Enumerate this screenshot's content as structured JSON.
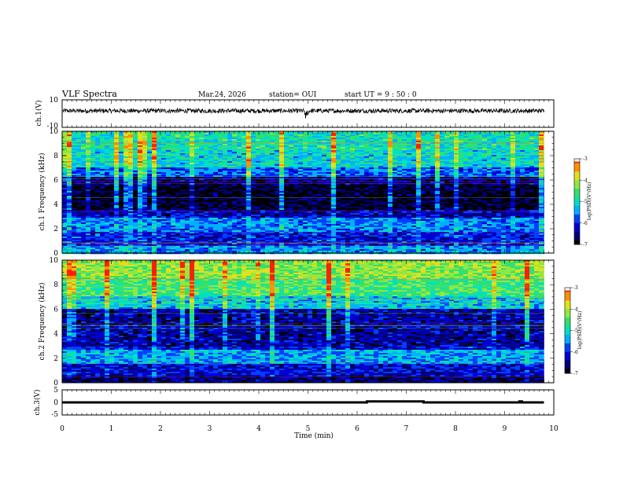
{
  "header": {
    "title": "VLF Spectra",
    "date": "Mar.24, 2026",
    "station": "station= OUI",
    "start_ut": "start  UT =   9 : 50 : 0"
  },
  "chart_data": [
    {
      "type": "line",
      "panel": "ch1-waveform",
      "ylabel": "ch.1(V)",
      "ylim": [
        -10,
        10
      ],
      "yticks": [
        "10",
        "-10"
      ],
      "xlim": [
        0,
        10
      ],
      "x": [
        0,
        1,
        2,
        3,
        4,
        5,
        6,
        7,
        8,
        9,
        9.8
      ],
      "values": [
        2,
        2,
        2,
        2,
        2,
        2,
        2,
        2,
        2,
        2,
        2
      ]
    },
    {
      "type": "heatmap",
      "panel": "ch1-spectrogram",
      "ylabel": "ch.1 Frequency (kHz)",
      "ylim": [
        0,
        10
      ],
      "yticks": [
        "0",
        "2",
        "4",
        "6",
        "8",
        "10"
      ],
      "xlim": [
        0,
        10
      ],
      "data_extent_min": 9.8,
      "band_levels": [
        {
          "f": [
            8.5,
            10
          ],
          "log_psd": -4.9
        },
        {
          "f": [
            7,
            8.5
          ],
          "log_psd": -5.1
        },
        {
          "f": [
            6.2,
            7
          ],
          "log_psd": -5.7
        },
        {
          "f": [
            5.6,
            6.2
          ],
          "log_psd": -6.5
        },
        {
          "f": [
            3.6,
            5.6
          ],
          "log_psd": -6.9
        },
        {
          "f": [
            2.9,
            3.6
          ],
          "log_psd": -6.3
        },
        {
          "f": [
            1.7,
            2.9
          ],
          "log_psd": -5.6
        },
        {
          "f": [
            0.6,
            1.7
          ],
          "log_psd": -6.1
        },
        {
          "f": [
            0,
            0.6
          ],
          "log_psd": -5.5
        }
      ],
      "colorbar": {
        "label": "log(PSD)(V²/Hz)",
        "range": [
          -7,
          -3
        ],
        "ticks": [
          "-3",
          "-4",
          "-5",
          "-6",
          "-7"
        ]
      }
    },
    {
      "type": "heatmap",
      "panel": "ch2-spectrogram",
      "ylabel": "ch.2 Frequency (kHz)",
      "ylim": [
        0,
        10
      ],
      "yticks": [
        "0",
        "2",
        "4",
        "6",
        "8",
        "10"
      ],
      "xlim": [
        0,
        10
      ],
      "data_extent_min": 9.8,
      "band_levels": [
        {
          "f": [
            8.5,
            10
          ],
          "log_psd": -4.2
        },
        {
          "f": [
            7,
            8.5
          ],
          "log_psd": -4.6
        },
        {
          "f": [
            6,
            7
          ],
          "log_psd": -5.2
        },
        {
          "f": [
            3,
            6
          ],
          "log_psd": -6.4
        },
        {
          "f": [
            2.7,
            3
          ],
          "log_psd": -6.1
        },
        {
          "f": [
            1.5,
            2.7
          ],
          "log_psd": -5.4
        },
        {
          "f": [
            0.5,
            1.5
          ],
          "log_psd": -6.2
        },
        {
          "f": [
            0,
            0.5
          ],
          "log_psd": -6.6
        }
      ],
      "colorbar": {
        "label": "log(PSD)(V²/Hz)",
        "range": [
          -7,
          -3
        ],
        "ticks": [
          "-3",
          "-4",
          "-5",
          "-6",
          "-7"
        ]
      }
    },
    {
      "type": "line",
      "panel": "ch3-signal",
      "ylabel": "ch.3(V)",
      "ylim": [
        -5,
        5
      ],
      "yticks": [
        "5",
        "0",
        "-5"
      ],
      "xlim": [
        0,
        10
      ],
      "x": [
        0,
        6.2,
        6.2,
        7.35,
        7.35,
        9.3,
        9.3,
        9.35,
        9.35,
        9.8
      ],
      "values": [
        0,
        0,
        0.4,
        0.4,
        0,
        0,
        0.4,
        0.4,
        0,
        0
      ]
    }
  ],
  "xaxis": {
    "label": "Time (min)",
    "ticks": [
      "0",
      "1",
      "2",
      "3",
      "4",
      "5",
      "6",
      "7",
      "8",
      "9",
      "10"
    ],
    "range": [
      0,
      10
    ]
  },
  "colors": {
    "palette": [
      "#000000",
      "#000070",
      "#0000d0",
      "#0040ff",
      "#00b0ff",
      "#00e0c0",
      "#30e070",
      "#90e840",
      "#e0e020",
      "#ff9000",
      "#ff2000",
      "#ffffff"
    ]
  }
}
